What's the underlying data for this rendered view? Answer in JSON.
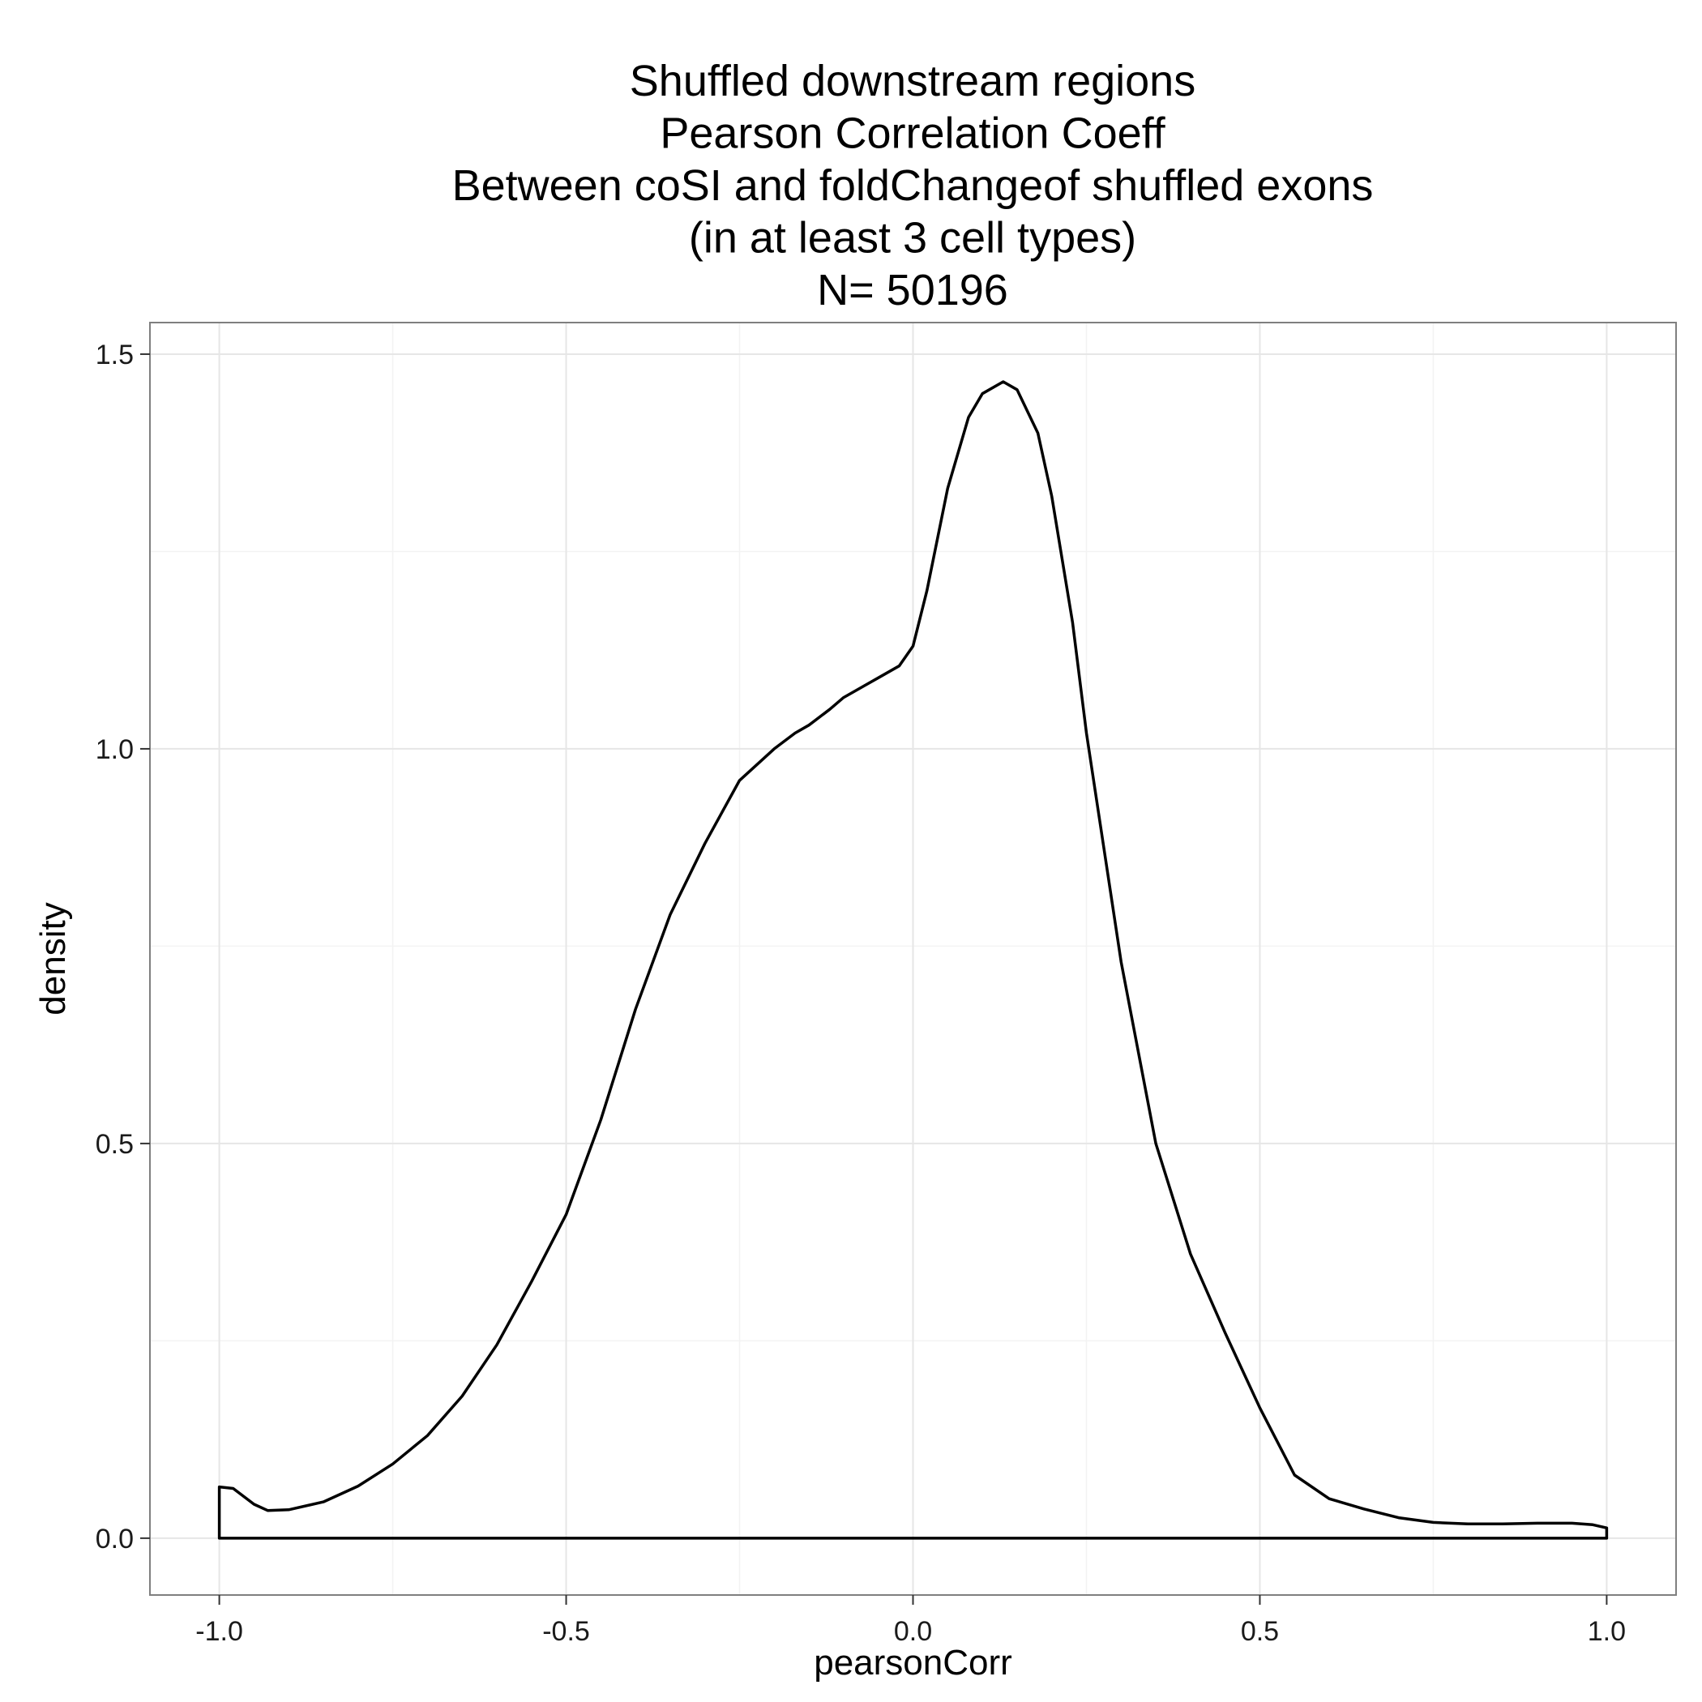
{
  "chart_data": {
    "type": "area",
    "title_lines": [
      "Shuffled downstream regions",
      "Pearson Correlation Coeff",
      "Between coSI and foldChangeof shuffled exons",
      "(in at least 3 cell types)",
      "N= 50196"
    ],
    "xlabel": "pearsonCorr",
    "ylabel": "density",
    "xlim": [
      -1.1,
      1.1
    ],
    "ylim": [
      -0.072,
      1.54
    ],
    "x_ticks": [
      -1.0,
      -0.5,
      0.0,
      0.5,
      1.0
    ],
    "x_tick_labels": [
      "-1.0",
      "-0.5",
      "0.0",
      "0.5",
      "1.0"
    ],
    "y_ticks": [
      0.0,
      0.5,
      1.0,
      1.5
    ],
    "y_tick_labels": [
      "0.0",
      "0.5",
      "1.0",
      "1.5"
    ],
    "grid": true,
    "series": [
      {
        "x": [
          -1.0,
          -0.98,
          -0.95,
          -0.93,
          -0.9,
          -0.85,
          -0.8,
          -0.75,
          -0.7,
          -0.65,
          -0.6,
          -0.55,
          -0.5,
          -0.45,
          -0.4,
          -0.35,
          -0.3,
          -0.25,
          -0.2,
          -0.17,
          -0.15,
          -0.12,
          -0.1,
          -0.07,
          -0.05,
          -0.02,
          0.0,
          0.02,
          0.05,
          0.08,
          0.1,
          0.13,
          0.15,
          0.18,
          0.2,
          0.23,
          0.25,
          0.3,
          0.35,
          0.4,
          0.45,
          0.5,
          0.55,
          0.6,
          0.65,
          0.7,
          0.75,
          0.8,
          0.85,
          0.9,
          0.95,
          0.98,
          1.0
        ],
        "y": [
          0.065,
          0.063,
          0.043,
          0.035,
          0.036,
          0.046,
          0.066,
          0.094,
          0.13,
          0.18,
          0.245,
          0.325,
          0.41,
          0.53,
          0.67,
          0.79,
          0.88,
          0.96,
          1.0,
          1.02,
          1.03,
          1.05,
          1.065,
          1.08,
          1.09,
          1.105,
          1.13,
          1.2,
          1.33,
          1.42,
          1.45,
          1.465,
          1.455,
          1.4,
          1.32,
          1.16,
          1.02,
          0.73,
          0.5,
          0.36,
          0.26,
          0.165,
          0.08,
          0.05,
          0.037,
          0.026,
          0.02,
          0.018,
          0.018,
          0.019,
          0.019,
          0.017,
          0.013
        ]
      }
    ]
  }
}
